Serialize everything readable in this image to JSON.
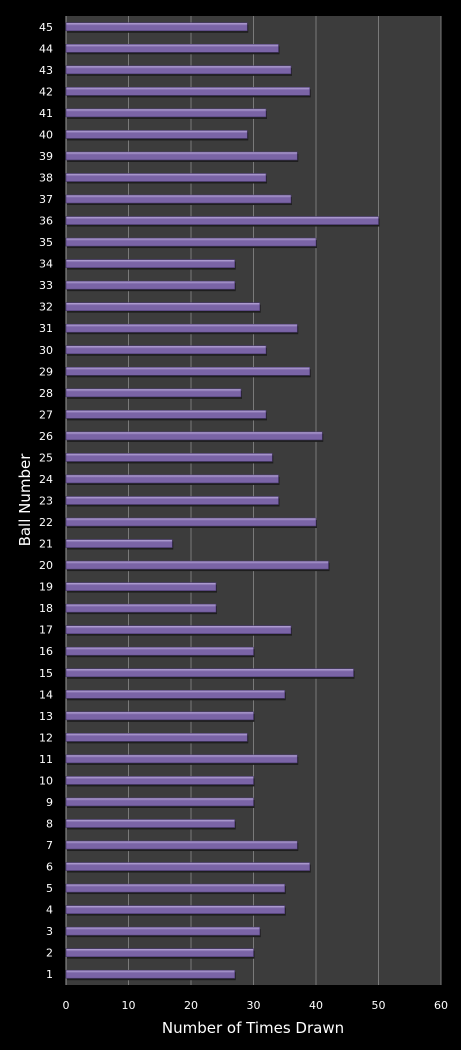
{
  "chart_data": {
    "type": "bar",
    "orientation": "horizontal",
    "categories": [
      "1",
      "2",
      "3",
      "4",
      "5",
      "6",
      "7",
      "8",
      "9",
      "10",
      "11",
      "12",
      "13",
      "14",
      "15",
      "16",
      "17",
      "18",
      "19",
      "20",
      "21",
      "22",
      "23",
      "24",
      "25",
      "26",
      "27",
      "28",
      "29",
      "30",
      "31",
      "32",
      "33",
      "34",
      "35",
      "36",
      "37",
      "38",
      "39",
      "40",
      "41",
      "42",
      "43",
      "44",
      "45"
    ],
    "values": [
      27,
      30,
      31,
      35,
      35,
      39,
      37,
      27,
      30,
      30,
      37,
      29,
      30,
      35,
      46,
      30,
      36,
      24,
      24,
      42,
      17,
      40,
      34,
      34,
      33,
      41,
      32,
      28,
      39,
      32,
      37,
      31,
      27,
      27,
      40,
      50,
      36,
      32,
      37,
      29,
      32,
      39,
      36,
      34,
      29
    ],
    "xlabel": "Number of Times Drawn",
    "ylabel": "Ball Number",
    "xlim": [
      0,
      60
    ],
    "xticks": [
      "0",
      "10",
      "20",
      "30",
      "40",
      "50",
      "60"
    ],
    "grid": "vertical gridlines",
    "legend": "none",
    "colors": {
      "background": "#000000",
      "plot_area": "#3c3c3c",
      "bar_fill": "#7a64a6",
      "bar_highlight": "#c0b0e0",
      "gridline": "#7a7a7a",
      "text": "#ffffff"
    }
  }
}
